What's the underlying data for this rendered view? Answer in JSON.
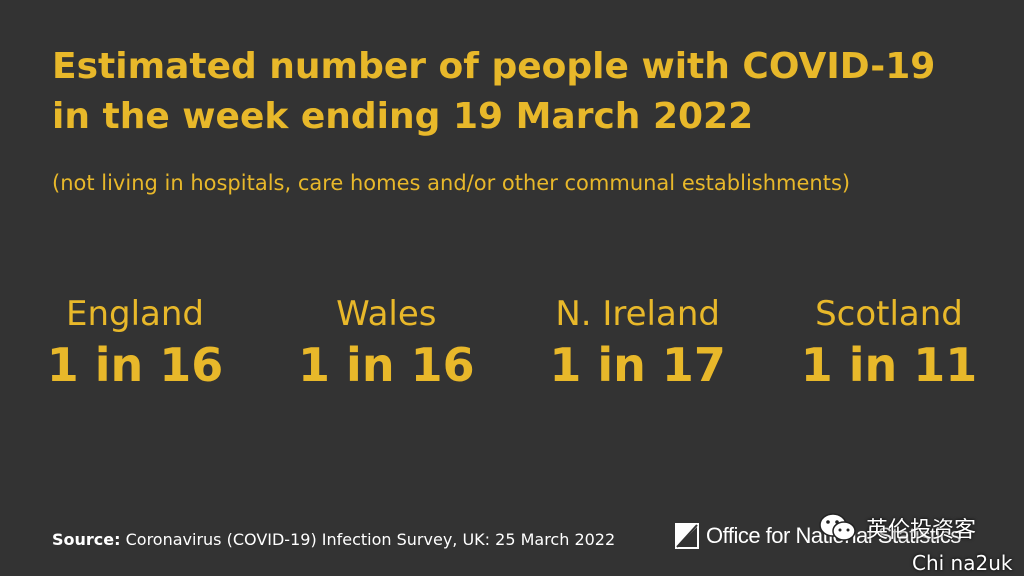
{
  "title_line1": "Estimated number of people with COVID-19",
  "title_line2": "in the week ending 19 March 2022",
  "subtitle": "(not living in hospitals, care homes and/or other communal establishments)",
  "stats": [
    {
      "label": "England",
      "value": "1 in 16"
    },
    {
      "label": "Wales",
      "value": "1 in 16"
    },
    {
      "label": "N. Ireland",
      "value": "1 in 17"
    },
    {
      "label": "Scotland",
      "value": "1 in 11"
    }
  ],
  "footer": {
    "source_label": "Source:",
    "source_text": " Coronavirus (COVID-19) Infection Survey, UK: 25 March 2022"
  },
  "logo": {
    "text": "Office for National Statistics",
    "icon": "ons-logo-icon"
  },
  "watermark": {
    "text": "英伦投资客",
    "sub": "Chi na2uk",
    "icon": "wechat-icon"
  },
  "colors": {
    "background": "#333333",
    "accent": "#e8b82a",
    "text": "#ffffff"
  }
}
